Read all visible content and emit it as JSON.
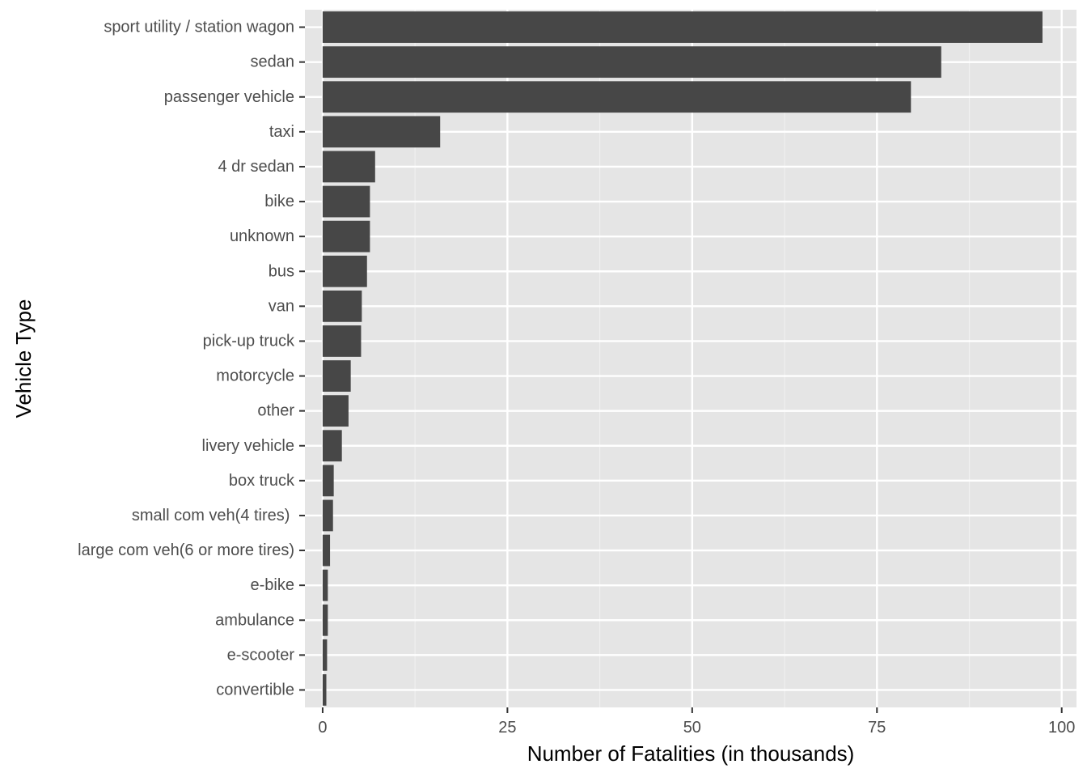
{
  "chart_data": {
    "type": "bar",
    "orientation": "horizontal",
    "title": "",
    "xlabel": "Number of Fatalities (in thousands)",
    "ylabel": "Vehicle Type",
    "xlim": [
      -2.4,
      102.0
    ],
    "x_ticks": [
      0,
      25,
      50,
      75,
      100
    ],
    "x_tick_labels": [
      "0",
      "25",
      "50",
      "75",
      "100"
    ],
    "grid": true,
    "legend": "none",
    "categories": [
      "sport utility / station wagon",
      "sedan",
      "passenger vehicle",
      "taxi",
      "4 dr sedan",
      "bike",
      "unknown",
      "bus",
      "van",
      "pick-up truck",
      "motorcycle",
      "other",
      "livery vehicle",
      "box truck",
      "small com veh(4 tires) ",
      "large com veh(6 or more tires)",
      "e-bike",
      "ambulance",
      "e-scooter",
      "convertible"
    ],
    "values": [
      97.4,
      83.7,
      79.6,
      15.9,
      7.1,
      6.4,
      6.4,
      6.0,
      5.3,
      5.2,
      3.8,
      3.5,
      2.6,
      1.5,
      1.4,
      1.0,
      0.7,
      0.7,
      0.6,
      0.5
    ],
    "colors": {
      "bar": "#474747",
      "panel": "#E5E5E5",
      "grid_major": "#FFFFFF",
      "grid_minor": "#F0F0F0",
      "tick_text": "#4D4D4D",
      "tick_mark": "#333333",
      "title_text": "#000000"
    }
  }
}
